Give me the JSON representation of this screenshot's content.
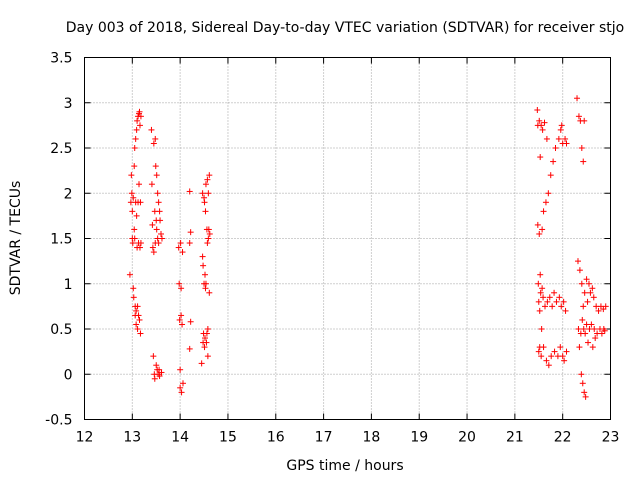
{
  "chart_data": {
    "type": "scatter",
    "title": "Day 003 of 2018, Sidereal Day-to-day VTEC variation (SDTVAR) for receiver stjo",
    "xlabel": "GPS time / hours",
    "ylabel": "SDTVAR / TECUs",
    "xlim": [
      12,
      23
    ],
    "ylim": [
      -0.5,
      3.5
    ],
    "x_ticks": [
      "12",
      "13",
      "14",
      "15",
      "16",
      "17",
      "18",
      "19",
      "20",
      "21",
      "22",
      "23"
    ],
    "y_ticks": [
      "-0.5",
      "0",
      "0.5",
      "1",
      "1.5",
      "2",
      "2.5",
      "3",
      "3.5"
    ],
    "grid": true,
    "marker": "+",
    "color": "#ff0000",
    "series": [
      {
        "name": "SDTVAR",
        "points": [
          [
            12.95,
            1.1
          ],
          [
            12.97,
            1.9
          ],
          [
            12.98,
            2.2
          ],
          [
            12.99,
            2.0
          ],
          [
            13.0,
            1.8
          ],
          [
            13.0,
            1.5
          ],
          [
            13.01,
            1.45
          ],
          [
            13.02,
            1.95
          ],
          [
            13.02,
            0.95
          ],
          [
            13.03,
            0.85
          ],
          [
            13.04,
            2.3
          ],
          [
            13.04,
            1.6
          ],
          [
            13.05,
            2.5
          ],
          [
            13.05,
            1.5
          ],
          [
            13.06,
            0.75
          ],
          [
            13.06,
            0.65
          ],
          [
            13.07,
            2.6
          ],
          [
            13.07,
            1.9
          ],
          [
            13.08,
            0.55
          ],
          [
            13.08,
            0.7
          ],
          [
            13.09,
            2.7
          ],
          [
            13.09,
            1.75
          ],
          [
            13.1,
            2.8
          ],
          [
            13.1,
            1.4
          ],
          [
            13.11,
            0.5
          ],
          [
            13.11,
            0.75
          ],
          [
            13.12,
            2.85
          ],
          [
            13.12,
            1.9
          ],
          [
            13.13,
            0.65
          ],
          [
            13.13,
            1.45
          ],
          [
            13.14,
            2.88
          ],
          [
            13.14,
            2.1
          ],
          [
            13.15,
            2.9
          ],
          [
            13.15,
            0.6
          ],
          [
            13.16,
            1.4
          ],
          [
            13.16,
            2.75
          ],
          [
            13.17,
            0.45
          ],
          [
            13.17,
            1.9
          ],
          [
            13.18,
            2.85
          ],
          [
            13.18,
            1.45
          ],
          [
            13.4,
            2.7
          ],
          [
            13.41,
            2.1
          ],
          [
            13.42,
            1.65
          ],
          [
            13.43,
            1.4
          ],
          [
            13.44,
            0.2
          ],
          [
            13.45,
            2.55
          ],
          [
            13.45,
            1.35
          ],
          [
            13.46,
            0.0
          ],
          [
            13.47,
            1.8
          ],
          [
            13.47,
            -0.05
          ],
          [
            13.48,
            2.6
          ],
          [
            13.48,
            1.45
          ],
          [
            13.49,
            2.3
          ],
          [
            13.5,
            1.7
          ],
          [
            13.5,
            0.1
          ],
          [
            13.51,
            2.2
          ],
          [
            13.51,
            1.6
          ],
          [
            13.52,
            0.05
          ],
          [
            13.53,
            1.5
          ],
          [
            13.53,
            2.0
          ],
          [
            13.54,
            0.0
          ],
          [
            13.55,
            1.9
          ],
          [
            13.55,
            1.45
          ],
          [
            13.56,
            0.05
          ],
          [
            13.57,
            1.8
          ],
          [
            13.57,
            -0.02
          ],
          [
            13.58,
            1.7
          ],
          [
            13.6,
            1.55
          ],
          [
            13.61,
            0.02
          ],
          [
            13.62,
            1.5
          ],
          [
            13.97,
            1.4
          ],
          [
            13.98,
            1.0
          ],
          [
            13.99,
            0.6
          ],
          [
            14.0,
            -0.15
          ],
          [
            14.0,
            0.05
          ],
          [
            14.01,
            1.45
          ],
          [
            14.02,
            0.95
          ],
          [
            14.02,
            0.65
          ],
          [
            14.03,
            -0.2
          ],
          [
            14.04,
            0.55
          ],
          [
            14.05,
            1.35
          ],
          [
            14.06,
            -0.1
          ],
          [
            14.2,
            2.02
          ],
          [
            14.2,
            1.45
          ],
          [
            14.2,
            0.28
          ],
          [
            14.22,
            1.57
          ],
          [
            14.22,
            0.58
          ],
          [
            14.45,
            0.12
          ],
          [
            14.47,
            1.3
          ],
          [
            14.47,
            2.0
          ],
          [
            14.48,
            1.2
          ],
          [
            14.48,
            0.35
          ],
          [
            14.49,
            0.45
          ],
          [
            14.5,
            1.95
          ],
          [
            14.5,
            1.0
          ],
          [
            14.51,
            0.3
          ],
          [
            14.51,
            1.9
          ],
          [
            14.52,
            1.1
          ],
          [
            14.52,
            0.4
          ],
          [
            14.53,
            1.8
          ],
          [
            14.53,
            0.95
          ],
          [
            14.54,
            2.1
          ],
          [
            14.54,
            1.0
          ],
          [
            14.55,
            0.35
          ],
          [
            14.56,
            1.6
          ],
          [
            14.56,
            0.45
          ],
          [
            14.57,
            2.15
          ],
          [
            14.57,
            1.45
          ],
          [
            14.58,
            0.5
          ],
          [
            14.58,
            0.2
          ],
          [
            14.59,
            1.5
          ],
          [
            14.59,
            2.0
          ],
          [
            14.6,
            1.6
          ],
          [
            14.61,
            2.2
          ],
          [
            14.61,
            0.9
          ],
          [
            14.62,
            1.55
          ],
          [
            21.47,
            2.92
          ],
          [
            21.48,
            2.75
          ],
          [
            21.48,
            1.65
          ],
          [
            21.49,
            1.0
          ],
          [
            21.5,
            0.25
          ],
          [
            21.5,
            0.8
          ],
          [
            21.51,
            2.8
          ],
          [
            21.51,
            1.55
          ],
          [
            21.52,
            0.7
          ],
          [
            21.52,
            0.3
          ],
          [
            21.53,
            2.4
          ],
          [
            21.53,
            1.1
          ],
          [
            21.54,
            0.9
          ],
          [
            21.55,
            0.2
          ],
          [
            21.55,
            2.75
          ],
          [
            21.56,
            0.5
          ],
          [
            21.57,
            1.6
          ],
          [
            21.57,
            0.95
          ],
          [
            21.58,
            2.7
          ],
          [
            21.59,
            0.85
          ],
          [
            21.6,
            0.3
          ],
          [
            21.6,
            1.8
          ],
          [
            21.62,
            2.78
          ],
          [
            21.63,
            0.75
          ],
          [
            21.65,
            1.9
          ],
          [
            21.66,
            0.15
          ],
          [
            21.67,
            2.6
          ],
          [
            21.68,
            0.8
          ],
          [
            21.7,
            2.0
          ],
          [
            21.71,
            0.1
          ],
          [
            21.73,
            0.85
          ],
          [
            21.75,
            2.2
          ],
          [
            21.76,
            0.2
          ],
          [
            21.78,
            0.75
          ],
          [
            21.8,
            2.35
          ],
          [
            21.82,
            0.9
          ],
          [
            21.83,
            0.25
          ],
          [
            21.85,
            2.5
          ],
          [
            21.87,
            0.8
          ],
          [
            21.9,
            0.2
          ],
          [
            21.92,
            2.6
          ],
          [
            21.93,
            0.85
          ],
          [
            21.95,
            0.3
          ],
          [
            21.96,
            2.7
          ],
          [
            21.97,
            0.75
          ],
          [
            21.98,
            2.75
          ],
          [
            22.0,
            0.2
          ],
          [
            22.0,
            2.55
          ],
          [
            22.02,
            0.8
          ],
          [
            22.03,
            0.15
          ],
          [
            22.05,
            2.6
          ],
          [
            22.06,
            0.7
          ],
          [
            22.08,
            2.55
          ],
          [
            22.08,
            0.25
          ],
          [
            22.3,
            3.05
          ],
          [
            22.32,
            1.25
          ],
          [
            22.33,
            0.5
          ],
          [
            22.34,
            2.85
          ],
          [
            22.35,
            0.3
          ],
          [
            22.36,
            1.15
          ],
          [
            22.37,
            2.8
          ],
          [
            22.38,
            0.45
          ],
          [
            22.39,
            0.0
          ],
          [
            22.4,
            2.5
          ],
          [
            22.4,
            1.0
          ],
          [
            22.41,
            0.6
          ],
          [
            22.42,
            -0.1
          ],
          [
            22.43,
            2.35
          ],
          [
            22.43,
            0.75
          ],
          [
            22.44,
            0.5
          ],
          [
            22.45,
            2.8
          ],
          [
            22.45,
            -0.2
          ],
          [
            22.46,
            0.9
          ],
          [
            22.47,
            0.45
          ],
          [
            22.48,
            -0.25
          ],
          [
            22.5,
            1.05
          ],
          [
            22.5,
            0.55
          ],
          [
            22.52,
            0.8
          ],
          [
            22.53,
            0.35
          ],
          [
            22.55,
            1.0
          ],
          [
            22.56,
            0.5
          ],
          [
            22.58,
            0.9
          ],
          [
            22.6,
            0.55
          ],
          [
            22.62,
            0.95
          ],
          [
            22.63,
            0.3
          ],
          [
            22.65,
            0.85
          ],
          [
            22.66,
            0.5
          ],
          [
            22.68,
            0.4
          ],
          [
            22.7,
            0.75
          ],
          [
            22.72,
            0.45
          ],
          [
            22.75,
            0.7
          ],
          [
            22.78,
            0.5
          ],
          [
            22.8,
            0.75
          ],
          [
            22.82,
            0.45
          ],
          [
            22.85,
            0.72
          ],
          [
            22.86,
            0.5
          ],
          [
            22.88,
            0.48
          ],
          [
            22.9,
            0.75
          ]
        ]
      }
    ]
  }
}
